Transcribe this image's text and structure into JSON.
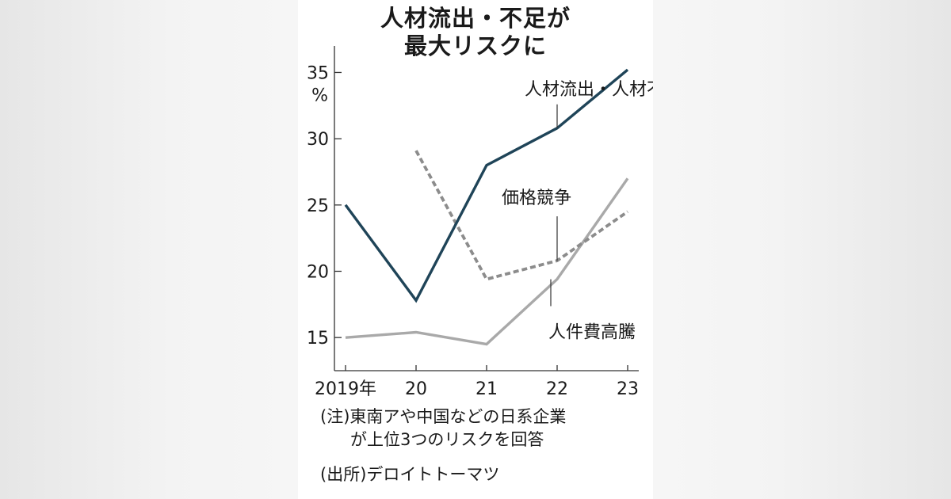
{
  "title_lines": [
    "人材流出・不足が",
    "最大リスクに"
  ],
  "chart_data": {
    "type": "line",
    "title": "人材流出・不足が最大リスクに",
    "x": [
      "2019年",
      "20",
      "21",
      "22",
      "23"
    ],
    "unit": "%",
    "ylim": [
      12.5,
      37
    ],
    "yticks": [
      15,
      20,
      25,
      30,
      35
    ],
    "ytick_labels": [
      "15",
      "20",
      "25",
      "30",
      "35"
    ],
    "grid": false,
    "series": [
      {
        "name": "人材流出・人材不足",
        "values": [
          25.0,
          17.8,
          28.0,
          30.8,
          35.2
        ],
        "color": "#1f4458",
        "dash": "solid"
      },
      {
        "name": "価格競争",
        "values": [
          null,
          29.1,
          19.4,
          20.8,
          24.5
        ],
        "color": "#8c8c8c",
        "dash": "dashed"
      },
      {
        "name": "人件費高騰",
        "values": [
          15.0,
          15.4,
          14.5,
          19.4,
          27.0
        ],
        "color": "#a9a9a9",
        "dash": "solid"
      }
    ]
  },
  "notes": {
    "line1": "(注)東南アや中国などの日系企業",
    "line2": "が上位3つのリスクを回答",
    "source": "(出所)デロイトトーマツ"
  }
}
